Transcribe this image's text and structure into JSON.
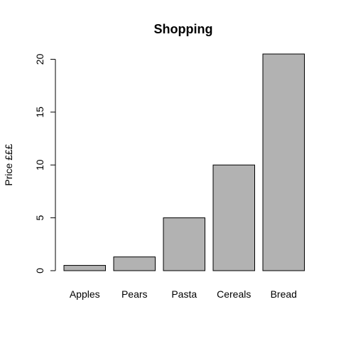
{
  "chart_data": {
    "type": "bar",
    "title": "Shopping",
    "xlabel": "",
    "ylabel": "Price £££",
    "categories": [
      "Apples",
      "Pears",
      "Pasta",
      "Cereals",
      "Bread"
    ],
    "values": [
      0.5,
      1.3,
      5,
      10,
      20.5
    ],
    "ylim": [
      0,
      20.5
    ],
    "yticks": [
      0,
      5,
      10,
      15,
      20
    ],
    "ytick_labels": [
      "0",
      "5",
      "10",
      "15",
      "20"
    ],
    "grid": false,
    "legend": "none",
    "bar_color": "#b2b2b2",
    "edge_color": "#000000"
  }
}
